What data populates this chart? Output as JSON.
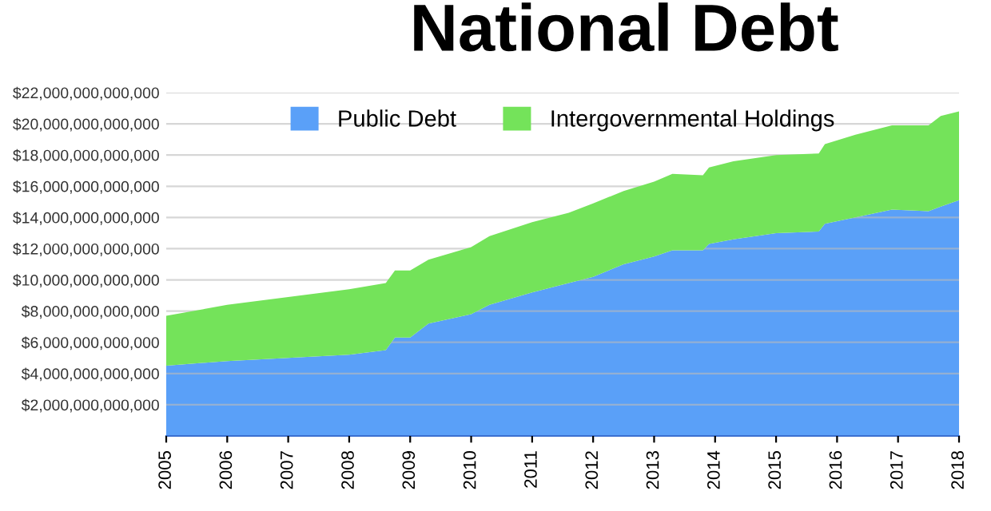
{
  "chart_data": {
    "type": "area",
    "title": "National Debt",
    "stacked": true,
    "x": [
      2005,
      2006,
      2007,
      2008,
      2008.6,
      2008.75,
      2009,
      2009.3,
      2010,
      2010.3,
      2011,
      2011.6,
      2012,
      2012.5,
      2013,
      2013.3,
      2013.8,
      2013.9,
      2014.3,
      2015,
      2015.7,
      2015.8,
      2016.3,
      2016.9,
      2017.5,
      2017.7,
      2018
    ],
    "series": [
      {
        "name": "Public Debt",
        "color": "#5aa0f8",
        "values": [
          4500000000000,
          4800000000000,
          5000000000000,
          5200000000000,
          5500000000000,
          6300000000000,
          6300000000000,
          7200000000000,
          7800000000000,
          8400000000000,
          9200000000000,
          9800000000000,
          10200000000000,
          11000000000000,
          11500000000000,
          11900000000000,
          11900000000000,
          12300000000000,
          12600000000000,
          13000000000000,
          13100000000000,
          13600000000000,
          14000000000000,
          14500000000000,
          14400000000000,
          14700000000000,
          15100000000000
        ]
      },
      {
        "name": "Intergovernmental Holdings",
        "color": "#74e35a",
        "values": [
          3200000000000,
          3600000000000,
          3900000000000,
          4200000000000,
          4300000000000,
          4300000000000,
          4300000000000,
          4100000000000,
          4300000000000,
          4400000000000,
          4500000000000,
          4500000000000,
          4700000000000,
          4700000000000,
          4800000000000,
          4900000000000,
          4800000000000,
          4900000000000,
          5000000000000,
          5000000000000,
          5000000000000,
          5100000000000,
          5300000000000,
          5400000000000,
          5500000000000,
          5800000000000,
          5700000000000
        ]
      }
    ],
    "xlim": [
      2005,
      2018
    ],
    "xticks": [
      2005,
      2006,
      2007,
      2008,
      2009,
      2010,
      2011,
      2012,
      2013,
      2014,
      2015,
      2016,
      2017,
      2018
    ],
    "ylim": [
      0,
      22000000000000
    ],
    "yticks": [
      {
        "value": 2000000000000,
        "label": "$2,000,000,000,000"
      },
      {
        "value": 4000000000000,
        "label": "$4,000,000,000,000"
      },
      {
        "value": 6000000000000,
        "label": "$6,000,000,000,000"
      },
      {
        "value": 8000000000000,
        "label": "$8,000,000,000,000"
      },
      {
        "value": 10000000000000,
        "label": "$10,000,000,000,000"
      },
      {
        "value": 12000000000000,
        "label": "$12,000,000,000,000"
      },
      {
        "value": 14000000000000,
        "label": "$14,000,000,000,000"
      },
      {
        "value": 16000000000000,
        "label": "$16,000,000,000,000"
      },
      {
        "value": 18000000000000,
        "label": "$18,000,000,000,000"
      },
      {
        "value": 20000000000000,
        "label": "$20,000,000,000,000"
      },
      {
        "value": 22000000000000,
        "label": "$22,000,000,000,000"
      }
    ],
    "grid": "y",
    "legend": "top"
  }
}
